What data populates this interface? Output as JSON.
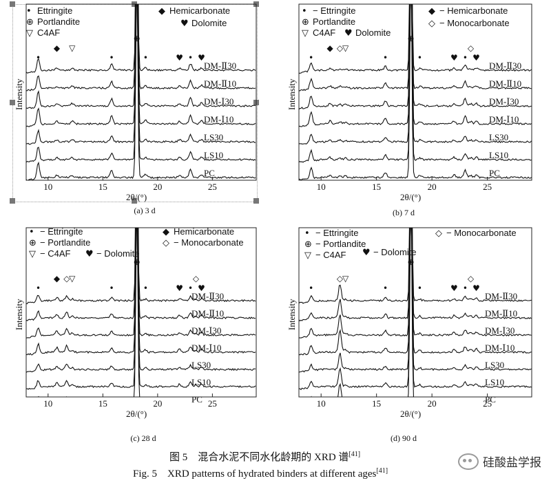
{
  "figure": {
    "caption_cn": "图 5　混合水泥不同水化龄期的 XRD 谱",
    "caption_en": "Fig. 5　XRD patterns of hydrated binders at different ages",
    "ref": "[41]",
    "watermark": "硅酸盐学报"
  },
  "chart_data": [
    {
      "type": "line",
      "panel_label": "(a) 3 d",
      "xlabel": "2θ/(°)",
      "ylabel": "Intensity",
      "xlim": [
        8,
        29
      ],
      "xticks": [
        10,
        15,
        20,
        25
      ],
      "legend": [
        {
          "symbol": "•",
          "label": "Ettringite"
        },
        {
          "symbol": "⊕",
          "label": "Portlandite"
        },
        {
          "symbol": "▽",
          "label": "C4AF"
        },
        {
          "symbol": "◆",
          "label": "Hemicarbonate"
        },
        {
          "symbol": "♥",
          "label": "Dolomite"
        }
      ],
      "series": [
        "DM-Ⅱ30",
        "DM-Ⅱ10",
        "DM-Ⅰ30",
        "DM-Ⅰ10",
        "LS30",
        "LS10",
        "PC"
      ],
      "peaks": [
        {
          "x": 9.1,
          "h": 30
        },
        {
          "x": 10.8,
          "h": 4
        },
        {
          "x": 12.2,
          "h": 5
        },
        {
          "x": 15.8,
          "h": 14
        },
        {
          "x": 18.1,
          "h": 300
        },
        {
          "x": 18.9,
          "h": 6
        },
        {
          "x": 22.0,
          "h": 5
        },
        {
          "x": 23.0,
          "h": 16
        },
        {
          "x": 24.0,
          "h": 6
        }
      ],
      "markers": [
        {
          "x": 9.1,
          "s": "•"
        },
        {
          "x": 10.8,
          "s": "◆"
        },
        {
          "x": 12.2,
          "s": "▽"
        },
        {
          "x": 15.8,
          "s": "•"
        },
        {
          "x": 18.1,
          "s": "⊕"
        },
        {
          "x": 18.9,
          "s": "•"
        },
        {
          "x": 22.0,
          "s": "♥"
        },
        {
          "x": 23.0,
          "s": "•"
        },
        {
          "x": 24.0,
          "s": "♥"
        }
      ]
    },
    {
      "type": "line",
      "panel_label": "(b) 7 d",
      "xlabel": "2θ/(°)",
      "ylabel": "Intensity",
      "xlim": [
        8,
        29
      ],
      "xticks": [
        10,
        15,
        20,
        25
      ],
      "legend": [
        {
          "symbol": "•",
          "label": "− Ettringite"
        },
        {
          "symbol": "⊕",
          "label": "Portlandite"
        },
        {
          "symbol": "▽",
          "label": "C4AF"
        },
        {
          "symbol": "◆",
          "label": "− Hemicarbonate"
        },
        {
          "symbol": "◇",
          "label": "− Monocarbonate"
        },
        {
          "symbol": "♥",
          "label": "Dolomite"
        }
      ],
      "series": [
        "DM-Ⅱ30",
        "DM-Ⅱ10",
        "DM-Ⅰ30",
        "DM-Ⅰ10",
        "LS30",
        "LS10",
        "PC"
      ],
      "peaks": [
        {
          "x": 9.1,
          "h": 22
        },
        {
          "x": 10.8,
          "h": 5
        },
        {
          "x": 11.7,
          "h": 4
        },
        {
          "x": 12.2,
          "h": 3
        },
        {
          "x": 15.8,
          "h": 10
        },
        {
          "x": 18.1,
          "h": 300
        },
        {
          "x": 18.9,
          "h": 4
        },
        {
          "x": 22.0,
          "h": 5
        },
        {
          "x": 23.0,
          "h": 14
        },
        {
          "x": 23.5,
          "h": 4
        },
        {
          "x": 24.0,
          "h": 5
        }
      ],
      "markers": [
        {
          "x": 9.1,
          "s": "•"
        },
        {
          "x": 10.8,
          "s": "◆"
        },
        {
          "x": 11.7,
          "s": "◇"
        },
        {
          "x": 12.2,
          "s": "▽"
        },
        {
          "x": 15.8,
          "s": "•"
        },
        {
          "x": 18.1,
          "s": "⊕"
        },
        {
          "x": 18.9,
          "s": "•"
        },
        {
          "x": 22.0,
          "s": "♥"
        },
        {
          "x": 23.0,
          "s": "•"
        },
        {
          "x": 23.5,
          "s": "◇"
        },
        {
          "x": 24.0,
          "s": "♥"
        }
      ]
    },
    {
      "type": "line",
      "panel_label": "(c) 28 d",
      "xlabel": "2θ/(°)",
      "ylabel": "Intensity",
      "xlim": [
        8,
        29
      ],
      "xticks": [
        10,
        15,
        20,
        25
      ],
      "legend": [
        {
          "symbol": "•",
          "label": "− Ettringite"
        },
        {
          "symbol": "⊕",
          "label": "− Portlandite"
        },
        {
          "symbol": "▽",
          "label": "− C4AF"
        },
        {
          "symbol": "◆",
          "label": "Hemicarbonate"
        },
        {
          "symbol": "◇",
          "label": "− Monocarbonate"
        },
        {
          "symbol": "♥",
          "label": "− Dolomite"
        }
      ],
      "series": [
        "DM-Ⅱ30",
        "DM-Ⅱ10",
        "DM-Ⅰ30",
        "DM-Ⅰ10",
        "LS30",
        "LS10",
        "PC"
      ],
      "peaks": [
        {
          "x": 9.1,
          "h": 16
        },
        {
          "x": 10.8,
          "h": 8
        },
        {
          "x": 11.7,
          "h": 12
        },
        {
          "x": 12.2,
          "h": 4
        },
        {
          "x": 15.8,
          "h": 8
        },
        {
          "x": 18.1,
          "h": 300
        },
        {
          "x": 18.9,
          "h": 4
        },
        {
          "x": 22.0,
          "h": 5
        },
        {
          "x": 23.0,
          "h": 10
        },
        {
          "x": 23.5,
          "h": 4
        },
        {
          "x": 24.0,
          "h": 6
        }
      ],
      "markers": [
        {
          "x": 9.1,
          "s": "•"
        },
        {
          "x": 10.8,
          "s": "◆"
        },
        {
          "x": 11.7,
          "s": "◇"
        },
        {
          "x": 12.2,
          "s": "▽"
        },
        {
          "x": 15.8,
          "s": "•"
        },
        {
          "x": 18.1,
          "s": "⊕"
        },
        {
          "x": 18.9,
          "s": "•"
        },
        {
          "x": 22.0,
          "s": "♥"
        },
        {
          "x": 23.0,
          "s": "•"
        },
        {
          "x": 23.5,
          "s": "◇"
        },
        {
          "x": 24.0,
          "s": "♥"
        }
      ]
    },
    {
      "type": "line",
      "panel_label": "(d) 90 d",
      "xlabel": "2θ/(°)",
      "ylabel": "Intensity",
      "xlim": [
        8,
        29
      ],
      "xticks": [
        10,
        15,
        20,
        25
      ],
      "legend": [
        {
          "symbol": "•",
          "label": "− Ettringite"
        },
        {
          "symbol": "⊕",
          "label": "− Portlandite"
        },
        {
          "symbol": "▽",
          "label": "− C4AF"
        },
        {
          "symbol": "◇",
          "label": "− Monocarbonate"
        },
        {
          "symbol": "♥",
          "label": "− Dolomite"
        }
      ],
      "series": [
        "DM-Ⅱ30",
        "DM-Ⅱ10",
        "DM-Ⅰ30",
        "DM-Ⅰ10",
        "LS30",
        "LS10",
        "PC"
      ],
      "peaks": [
        {
          "x": 9.1,
          "h": 14
        },
        {
          "x": 11.7,
          "h": 40
        },
        {
          "x": 12.2,
          "h": 4
        },
        {
          "x": 15.8,
          "h": 8
        },
        {
          "x": 18.1,
          "h": 300
        },
        {
          "x": 18.9,
          "h": 4
        },
        {
          "x": 22.0,
          "h": 5
        },
        {
          "x": 23.0,
          "h": 10
        },
        {
          "x": 23.5,
          "h": 6
        },
        {
          "x": 24.0,
          "h": 6
        }
      ],
      "markers": [
        {
          "x": 9.1,
          "s": "•"
        },
        {
          "x": 11.7,
          "s": "◇"
        },
        {
          "x": 12.2,
          "s": "▽"
        },
        {
          "x": 15.8,
          "s": "•"
        },
        {
          "x": 18.1,
          "s": "⊕"
        },
        {
          "x": 18.9,
          "s": "•"
        },
        {
          "x": 22.0,
          "s": "♥"
        },
        {
          "x": 23.0,
          "s": "•"
        },
        {
          "x": 23.5,
          "s": "◇"
        },
        {
          "x": 24.0,
          "s": "♥"
        }
      ]
    }
  ]
}
